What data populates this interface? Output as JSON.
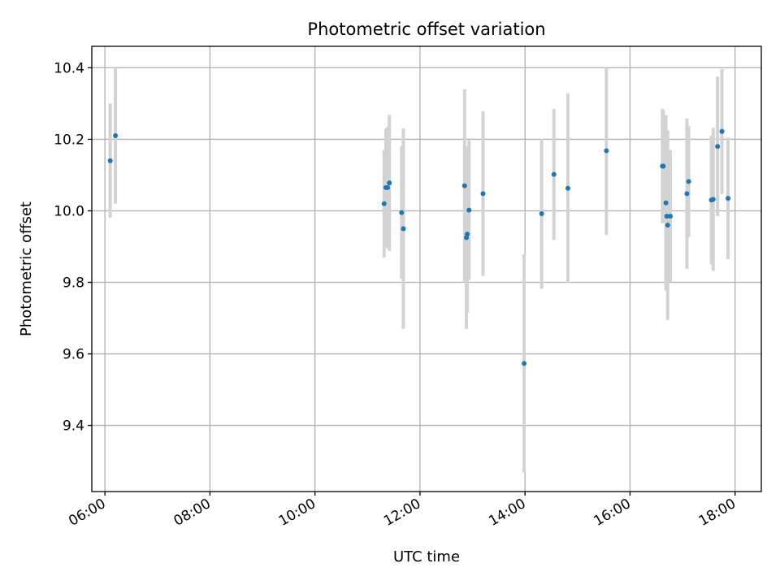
{
  "chart_data": {
    "type": "scatter",
    "title": "Photometric offset variation",
    "xlabel": "UTC time",
    "ylabel": "Photometric offset",
    "xlim": [
      "05:45",
      "18:30"
    ],
    "ylim": [
      9.215,
      10.46
    ],
    "x_ticks": [
      "06:00",
      "08:00",
      "10:00",
      "12:00",
      "14:00",
      "16:00",
      "18:00"
    ],
    "y_ticks": [
      9.4,
      9.6,
      9.8,
      10.0,
      10.2,
      10.4
    ],
    "y_tick_labels": [
      "9.4",
      "9.6",
      "9.8",
      "10.0",
      "10.2",
      "10.4"
    ],
    "grid": true,
    "marker_color": "#1f77b4",
    "errorbar_color": "#d3d3d3",
    "points": [
      {
        "t": "06:06",
        "y": 10.14,
        "err": 0.16
      },
      {
        "t": "06:12",
        "y": 10.21,
        "err": 0.19
      },
      {
        "t": "11:19",
        "y": 10.02,
        "err": 0.15
      },
      {
        "t": "11:21",
        "y": 10.065,
        "err": 0.165
      },
      {
        "t": "11:23",
        "y": 10.065,
        "err": 0.17
      },
      {
        "t": "11:25",
        "y": 10.078,
        "err": 0.19
      },
      {
        "t": "11:39",
        "y": 9.995,
        "err": 0.185
      },
      {
        "t": "11:41",
        "y": 9.95,
        "err": 0.28
      },
      {
        "t": "12:51",
        "y": 10.07,
        "err": 0.27
      },
      {
        "t": "12:53",
        "y": 9.925,
        "err": 0.255
      },
      {
        "t": "12:54",
        "y": 9.935,
        "err": 0.22
      },
      {
        "t": "12:56",
        "y": 10.002,
        "err": 0.195
      },
      {
        "t": "13:12",
        "y": 10.048,
        "err": 0.23
      },
      {
        "t": "13:59",
        "y": 9.573,
        "err": 0.305
      },
      {
        "t": "14:19",
        "y": 9.992,
        "err": 0.21
      },
      {
        "t": "14:33",
        "y": 10.102,
        "err": 0.183
      },
      {
        "t": "14:49",
        "y": 10.063,
        "err": 0.265
      },
      {
        "t": "15:33",
        "y": 10.168,
        "err": 0.235
      },
      {
        "t": "16:37",
        "y": 10.125,
        "err": 0.16
      },
      {
        "t": "16:38",
        "y": 10.125,
        "err": 0.155
      },
      {
        "t": "16:41",
        "y": 10.022,
        "err": 0.245
      },
      {
        "t": "16:42",
        "y": 9.985,
        "err": 0.205
      },
      {
        "t": "16:43",
        "y": 9.96,
        "err": 0.265
      },
      {
        "t": "16:46",
        "y": 9.985,
        "err": 0.185
      },
      {
        "t": "17:05",
        "y": 10.048,
        "err": 0.21
      },
      {
        "t": "17:07",
        "y": 10.082,
        "err": 0.155
      },
      {
        "t": "17:33",
        "y": 10.03,
        "err": 0.18
      },
      {
        "t": "17:35",
        "y": 10.032,
        "err": 0.2
      },
      {
        "t": "17:40",
        "y": 10.18,
        "err": 0.195
      },
      {
        "t": "17:45",
        "y": 10.222,
        "err": 0.175
      },
      {
        "t": "17:52",
        "y": 10.035,
        "err": 0.17
      }
    ]
  }
}
